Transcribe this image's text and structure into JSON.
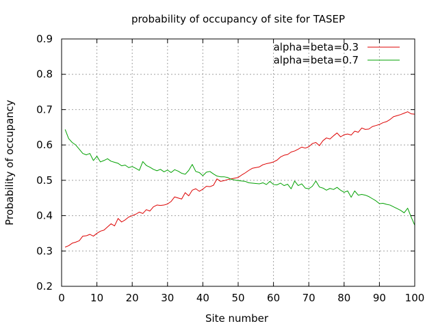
{
  "chart_data": {
    "type": "line",
    "title": "probability of occupancy of site for TASEP",
    "xlabel": "Site number",
    "ylabel": "Probability of occupancy",
    "xlim": [
      0,
      100
    ],
    "ylim": [
      0.2,
      0.9
    ],
    "xticks": [
      0,
      10,
      20,
      30,
      40,
      50,
      60,
      70,
      80,
      90,
      100
    ],
    "yticks": [
      0.2,
      0.3,
      0.4,
      0.5,
      0.6,
      0.7,
      0.8,
      0.9
    ],
    "xtick_labels": [
      "0",
      "10",
      "20",
      "30",
      "40",
      "50",
      "60",
      "70",
      "80",
      "90",
      "100"
    ],
    "ytick_labels": [
      "0.2",
      "0.3",
      "0.4",
      "0.5",
      "0.6",
      "0.7",
      "0.8",
      "0.9"
    ],
    "grid": true,
    "legend_position": "top-right",
    "x": [
      1,
      2,
      3,
      4,
      5,
      6,
      7,
      8,
      9,
      10,
      11,
      12,
      13,
      14,
      15,
      16,
      17,
      18,
      19,
      20,
      21,
      22,
      23,
      24,
      25,
      26,
      27,
      28,
      29,
      30,
      31,
      32,
      33,
      34,
      35,
      36,
      37,
      38,
      39,
      40,
      41,
      42,
      43,
      44,
      45,
      46,
      47,
      48,
      49,
      50,
      51,
      52,
      53,
      54,
      55,
      56,
      57,
      58,
      59,
      60,
      61,
      62,
      63,
      64,
      65,
      66,
      67,
      68,
      69,
      70,
      71,
      72,
      73,
      74,
      75,
      76,
      77,
      78,
      79,
      80,
      81,
      82,
      83,
      84,
      85,
      86,
      87,
      88,
      89,
      90,
      91,
      92,
      93,
      94,
      95,
      96,
      97,
      98,
      99,
      100
    ],
    "series": [
      {
        "name": "alpha=beta=0.3",
        "color": "#dd0000",
        "values": [
          0.311,
          0.315,
          0.322,
          0.325,
          0.329,
          0.342,
          0.343,
          0.347,
          0.342,
          0.35,
          0.356,
          0.359,
          0.368,
          0.377,
          0.371,
          0.392,
          0.382,
          0.388,
          0.396,
          0.4,
          0.404,
          0.41,
          0.406,
          0.417,
          0.413,
          0.425,
          0.43,
          0.429,
          0.43,
          0.433,
          0.44,
          0.453,
          0.45,
          0.447,
          0.465,
          0.456,
          0.472,
          0.476,
          0.469,
          0.475,
          0.483,
          0.482,
          0.486,
          0.504,
          0.497,
          0.499,
          0.502,
          0.504,
          0.506,
          0.508,
          0.515,
          0.521,
          0.528,
          0.534,
          0.536,
          0.538,
          0.544,
          0.547,
          0.549,
          0.552,
          0.557,
          0.566,
          0.571,
          0.573,
          0.58,
          0.583,
          0.588,
          0.594,
          0.591,
          0.595,
          0.604,
          0.607,
          0.598,
          0.612,
          0.62,
          0.617,
          0.626,
          0.634,
          0.623,
          0.629,
          0.631,
          0.628,
          0.639,
          0.636,
          0.648,
          0.644,
          0.645,
          0.652,
          0.655,
          0.658,
          0.663,
          0.666,
          0.672,
          0.68,
          0.683,
          0.686,
          0.69,
          0.694,
          0.688,
          0.687
        ]
      },
      {
        "name": "alpha=beta=0.7",
        "color": "#00a000",
        "values": [
          0.644,
          0.618,
          0.607,
          0.6,
          0.588,
          0.576,
          0.572,
          0.576,
          0.556,
          0.568,
          0.552,
          0.556,
          0.561,
          0.554,
          0.551,
          0.548,
          0.541,
          0.543,
          0.536,
          0.539,
          0.534,
          0.528,
          0.553,
          0.542,
          0.537,
          0.531,
          0.527,
          0.531,
          0.524,
          0.529,
          0.522,
          0.53,
          0.526,
          0.52,
          0.517,
          0.528,
          0.545,
          0.525,
          0.522,
          0.513,
          0.523,
          0.525,
          0.518,
          0.512,
          0.51,
          0.51,
          0.508,
          0.503,
          0.501,
          0.499,
          0.498,
          0.497,
          0.493,
          0.492,
          0.491,
          0.49,
          0.493,
          0.488,
          0.497,
          0.488,
          0.487,
          0.492,
          0.485,
          0.489,
          0.476,
          0.498,
          0.485,
          0.49,
          0.478,
          0.476,
          0.483,
          0.498,
          0.481,
          0.478,
          0.472,
          0.477,
          0.474,
          0.48,
          0.472,
          0.466,
          0.47,
          0.452,
          0.47,
          0.458,
          0.46,
          0.458,
          0.454,
          0.448,
          0.442,
          0.434,
          0.435,
          0.432,
          0.43,
          0.425,
          0.42,
          0.415,
          0.408,
          0.421,
          0.396,
          0.373
        ]
      }
    ]
  }
}
